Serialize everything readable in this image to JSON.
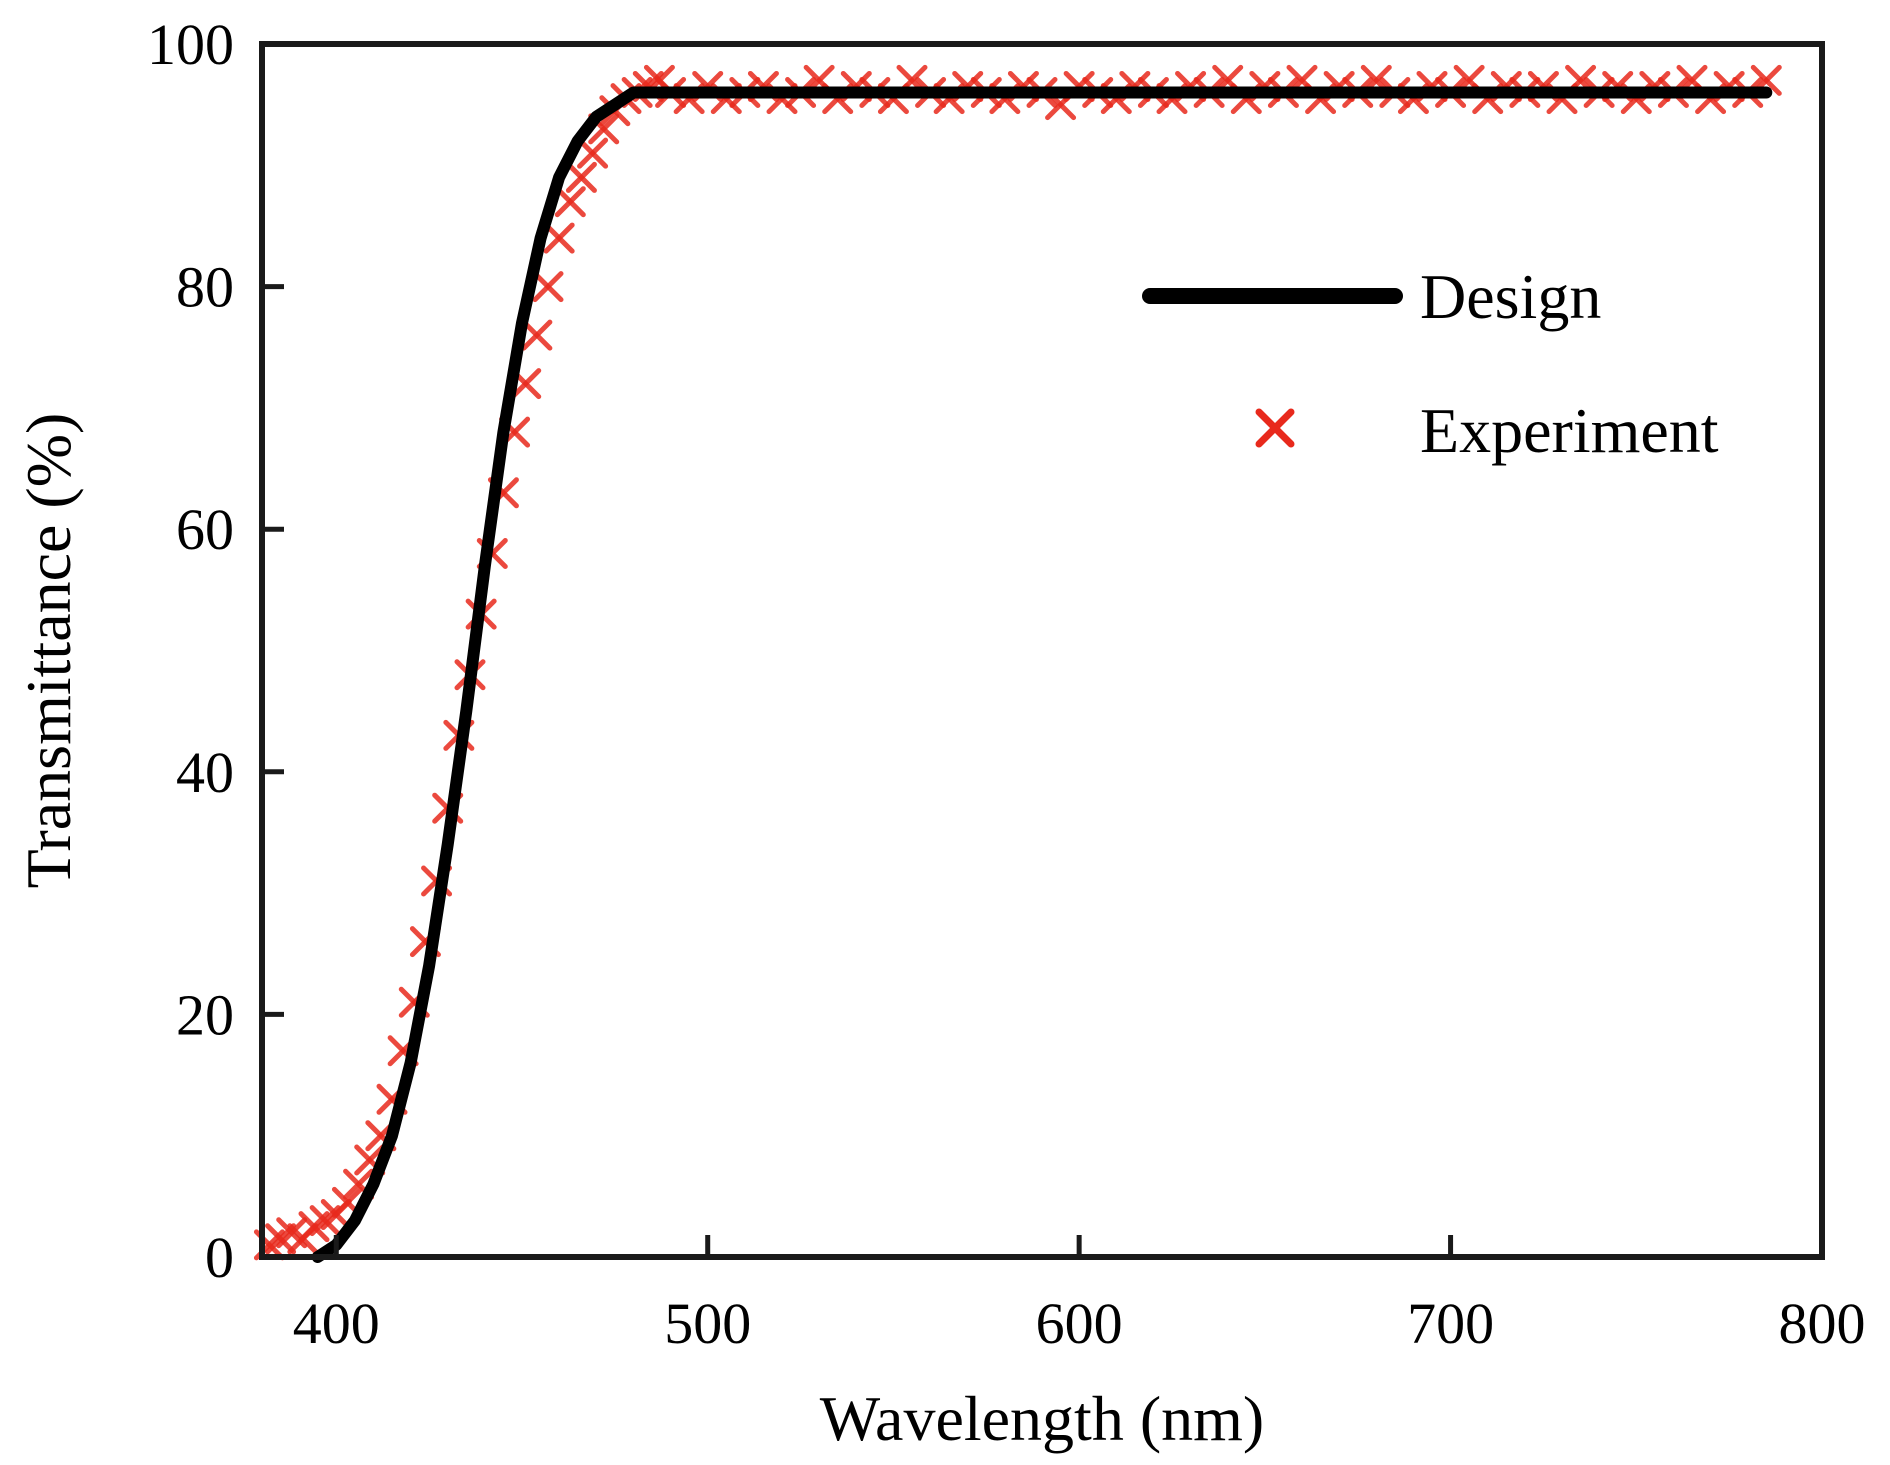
{
  "chart_data": {
    "type": "line",
    "title": "",
    "xlabel": "Wavelength (nm)",
    "ylabel": "Transmittance (%)",
    "xlim": [
      380,
      800
    ],
    "ylim": [
      0,
      100
    ],
    "xticks": [
      400,
      500,
      600,
      700,
      800
    ],
    "yticks": [
      0,
      20,
      40,
      60,
      80,
      100
    ],
    "grid": false,
    "legend_position": "top-right",
    "series": [
      {
        "name": "Design",
        "style": "line",
        "color": "#000000",
        "x": [
          395,
          400,
          405,
          410,
          415,
          420,
          425,
          430,
          435,
          440,
          445,
          450,
          455,
          460,
          465,
          470,
          475,
          480,
          490,
          500,
          520,
          540,
          560,
          580,
          600,
          620,
          640,
          660,
          680,
          700,
          720,
          740,
          760,
          785
        ],
        "y": [
          0,
          1,
          3,
          6,
          10,
          16,
          24,
          34,
          45,
          57,
          68,
          77,
          84,
          89,
          92,
          94,
          95,
          96,
          96,
          96,
          96,
          96,
          96,
          96,
          96,
          96,
          96,
          96,
          96,
          96,
          96,
          96,
          96,
          96
        ]
      },
      {
        "name": "Experiment",
        "style": "x-markers",
        "color": "#e8291c",
        "x": [
          382,
          385,
          388,
          391,
          394,
          397,
          400,
          403,
          406,
          409,
          412,
          415,
          418,
          421,
          424,
          427,
          430,
          433,
          436,
          439,
          442,
          445,
          448,
          451,
          454,
          457,
          460,
          463,
          466,
          469,
          472,
          475,
          478,
          481,
          484,
          487,
          490,
          495,
          500,
          505,
          510,
          515,
          520,
          525,
          530,
          535,
          540,
          545,
          550,
          555,
          560,
          565,
          570,
          575,
          580,
          585,
          590,
          595,
          600,
          605,
          610,
          615,
          620,
          625,
          630,
          635,
          640,
          645,
          650,
          655,
          660,
          665,
          670,
          675,
          680,
          685,
          690,
          695,
          700,
          705,
          710,
          715,
          720,
          725,
          730,
          735,
          740,
          745,
          750,
          755,
          760,
          765,
          770,
          775,
          780,
          785
        ],
        "y": [
          1,
          1.5,
          2,
          1.5,
          2.5,
          3,
          3.5,
          4.5,
          6,
          8,
          10,
          13,
          17,
          21,
          26,
          31,
          37,
          43,
          48,
          53,
          58,
          63,
          68,
          72,
          76,
          80,
          84,
          87,
          89,
          91,
          93,
          94.5,
          95.5,
          96,
          96.5,
          97,
          96,
          95.5,
          96.5,
          95.5,
          96,
          96.5,
          95.5,
          96,
          97,
          95.5,
          96.5,
          96,
          95.5,
          97,
          96,
          95.5,
          96.5,
          96,
          95.5,
          96.5,
          96,
          95,
          96.5,
          96,
          95.5,
          96.5,
          96,
          95.5,
          96.5,
          96,
          97,
          95.5,
          96.5,
          96,
          97,
          95.5,
          96.5,
          96,
          97,
          96,
          95.5,
          96.5,
          96,
          97,
          95.5,
          96.5,
          96,
          96.5,
          95.5,
          97,
          96,
          96.5,
          95.5,
          96.5,
          96,
          97,
          95.5,
          96.5,
          96,
          97
        ]
      }
    ]
  }
}
